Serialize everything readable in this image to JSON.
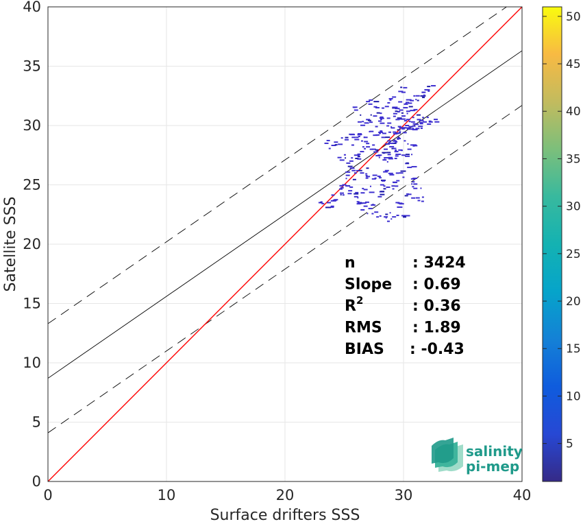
{
  "chart_data": {
    "type": "heatmap",
    "title": "",
    "xlabel": "Surface drifters SSS",
    "ylabel": "Satellite SSS",
    "xlim": [
      0,
      40
    ],
    "ylim": [
      0,
      40
    ],
    "xticks": [
      0,
      10,
      20,
      30,
      40
    ],
    "yticks": [
      0,
      5,
      10,
      15,
      20,
      25,
      30,
      35,
      40
    ],
    "grid": true,
    "identity_line": {
      "color": "#ff0000",
      "x": [
        0,
        40
      ],
      "y": [
        0,
        40
      ]
    },
    "fit_line": {
      "slope": 0.69,
      "intercept": 8.7,
      "color": "#000000"
    },
    "fit_bounds_dashed": {
      "upper_intercept": 13.3,
      "lower_intercept": 4.1,
      "slope": 0.69
    },
    "colorbar": {
      "min": 1,
      "max": 51,
      "ticks": [
        5,
        10,
        15,
        20,
        25,
        30,
        35,
        40,
        45,
        50
      ],
      "colormap": "parula"
    },
    "scatter_bins": [
      [
        23.0,
        23.5
      ],
      [
        23.7,
        23.5
      ],
      [
        24.2,
        23.7
      ],
      [
        24.8,
        24.3
      ],
      [
        25.0,
        25.0
      ],
      [
        25.5,
        24.5
      ],
      [
        26.0,
        24.0
      ],
      [
        26.3,
        23.5
      ],
      [
        26.8,
        23.2
      ],
      [
        27.2,
        23.0
      ],
      [
        27.7,
        22.7
      ],
      [
        28.5,
        22.3
      ],
      [
        29.2,
        22.3
      ],
      [
        30.0,
        22.4
      ],
      [
        28.0,
        24.0
      ],
      [
        29.5,
        23.5
      ],
      [
        30.5,
        24.2
      ],
      [
        31.0,
        24.7
      ],
      [
        31.2,
        23.9
      ],
      [
        30.8,
        25.5
      ],
      [
        25.8,
        26.2
      ],
      [
        26.5,
        26.0
      ],
      [
        27.0,
        25.7
      ],
      [
        27.5,
        25.5
      ],
      [
        28.2,
        25.0
      ],
      [
        28.7,
        24.8
      ],
      [
        29.3,
        25.2
      ],
      [
        29.8,
        26.0
      ],
      [
        25.6,
        27.0
      ],
      [
        26.0,
        27.5
      ],
      [
        26.5,
        27.8
      ],
      [
        27.0,
        28.2
      ],
      [
        27.5,
        28.0
      ],
      [
        28.0,
        27.5
      ],
      [
        28.4,
        27.1
      ],
      [
        28.9,
        27.3
      ],
      [
        29.4,
        27.8
      ],
      [
        30.0,
        27.5
      ],
      [
        30.5,
        28.0
      ],
      [
        31.0,
        28.3
      ],
      [
        23.5,
        28.5
      ],
      [
        24.3,
        28.6
      ],
      [
        25.2,
        28.8
      ],
      [
        25.8,
        29.0
      ],
      [
        26.3,
        29.3
      ],
      [
        26.8,
        29.0
      ],
      [
        27.3,
        29.5
      ],
      [
        27.8,
        29.2
      ],
      [
        28.3,
        29.0
      ],
      [
        28.8,
        28.7
      ],
      [
        29.3,
        29.3
      ],
      [
        29.8,
        29.8
      ],
      [
        30.3,
        30.0
      ],
      [
        30.8,
        30.3
      ],
      [
        31.3,
        30.5
      ],
      [
        31.8,
        30.3
      ],
      [
        32.3,
        30.3
      ],
      [
        26.3,
        30.3
      ],
      [
        27.0,
        30.5
      ],
      [
        27.6,
        30.8
      ],
      [
        28.2,
        30.6
      ],
      [
        28.8,
        30.2
      ],
      [
        29.3,
        31.0
      ],
      [
        29.8,
        31.3
      ],
      [
        30.2,
        31.8
      ],
      [
        30.7,
        32.1
      ],
      [
        31.2,
        32.5
      ],
      [
        31.7,
        32.8
      ],
      [
        32.0,
        33.0
      ],
      [
        30.0,
        32.8
      ],
      [
        29.2,
        32.4
      ],
      [
        28.6,
        31.6
      ],
      [
        26.0,
        31.3
      ],
      [
        27.2,
        31.8
      ],
      [
        27.8,
        31.5
      ],
      [
        26.8,
        24.6
      ],
      [
        25.3,
        25.8
      ],
      [
        24.6,
        27.3
      ],
      [
        28.6,
        26.2
      ],
      [
        30.3,
        26.8
      ],
      [
        29.0,
        28.5
      ],
      [
        29.6,
        28.9
      ],
      [
        30.1,
        29.4
      ],
      [
        30.6,
        29.9
      ],
      [
        31.1,
        30.1
      ],
      [
        28.5,
        28.0
      ],
      [
        29.1,
        29.8
      ],
      [
        29.5,
        30.5
      ],
      [
        30.0,
        30.8
      ],
      [
        30.4,
        31.2
      ]
    ],
    "stats": [
      {
        "label": "n",
        "value": ": 3424"
      },
      {
        "label": "Slope",
        "value": ": 0.69"
      },
      {
        "label": "R",
        "sup": "2",
        "value": ": 0.36"
      },
      {
        "label": "RMS",
        "value": ": 1.89"
      },
      {
        "label": "BIAS",
        "value": ": -0.43"
      }
    ]
  },
  "logo": {
    "line1": "salinity",
    "line2": "pi-mep"
  },
  "colors": {
    "grid": "#e6e6e6",
    "axis": "#262626",
    "identity": "#ff0000",
    "fit": "#000000",
    "points": "#3d2fd0",
    "logo": "#1f9a8a"
  }
}
